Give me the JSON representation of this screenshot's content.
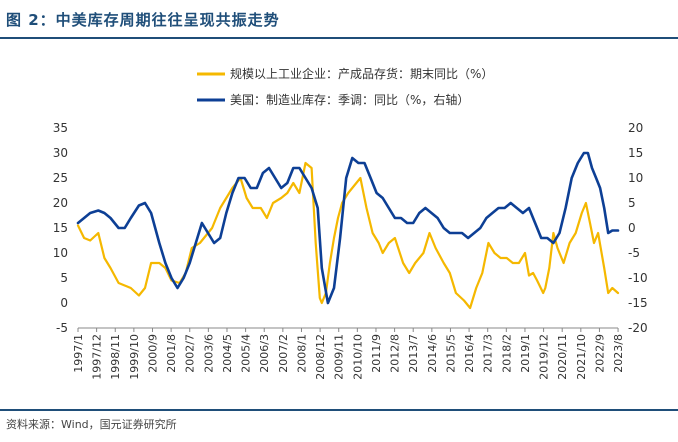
{
  "figure": {
    "title": "图 2：中美库存周期往往呈现共振走势",
    "source": "资料来源：Wind，国元证券研究所"
  },
  "colors": {
    "china": "#f5b800",
    "us": "#0d3f95",
    "accent": "#1f4e79"
  },
  "chart_data": {
    "type": "line",
    "legend": {
      "position": "top-center"
    },
    "left_axis": {
      "ylim": [
        -5,
        35
      ],
      "ticks": [
        -5,
        0,
        5,
        10,
        15,
        20,
        25,
        30,
        35
      ]
    },
    "right_axis": {
      "ylim": [
        -20,
        20
      ],
      "ticks": [
        -20,
        -15,
        -10,
        -5,
        0,
        5,
        10,
        15,
        20
      ]
    },
    "x_range": [
      1997.0,
      2023.58
    ],
    "x_tick_labels": [
      "1997/1",
      "1997/12",
      "1998/11",
      "1999/10",
      "2000/9",
      "2001/8",
      "2002/7",
      "2003/6",
      "2004/5",
      "2005/4",
      "2006/3",
      "2007/2",
      "2008/1",
      "2008/12",
      "2009/11",
      "2010/10",
      "2011/9",
      "2012/8",
      "2013/7",
      "2014/6",
      "2015/5",
      "2016/4",
      "2017/3",
      "2018/2",
      "2019/1",
      "2019/12",
      "2020/11",
      "2021/10",
      "2022/9",
      "2023/8"
    ],
    "series": [
      {
        "name": "规模以上工业企业：产成品存货：期末同比（%）",
        "axis": "left",
        "color": "#f5b800",
        "x": [
          1997.0,
          1997.3,
          1997.6,
          1998.0,
          1998.3,
          1998.6,
          1999.0,
          1999.3,
          1999.6,
          2000.0,
          2000.3,
          2000.6,
          2001.0,
          2001.3,
          2001.6,
          2002.0,
          2002.3,
          2002.6,
          2003.0,
          2003.3,
          2003.6,
          2004.0,
          2004.3,
          2004.6,
          2005.0,
          2005.3,
          2005.6,
          2006.0,
          2006.3,
          2006.6,
          2007.0,
          2007.3,
          2007.6,
          2007.9,
          2008.2,
          2008.5,
          2008.7,
          2008.9,
          2009.0,
          2009.2,
          2009.4,
          2009.6,
          2009.8,
          2010.0,
          2010.3,
          2010.6,
          2010.9,
          2011.2,
          2011.5,
          2011.8,
          2012.0,
          2012.3,
          2012.6,
          2013.0,
          2013.3,
          2013.6,
          2014.0,
          2014.3,
          2014.6,
          2015.0,
          2015.3,
          2015.6,
          2016.0,
          2016.3,
          2016.6,
          2016.9,
          2017.2,
          2017.5,
          2017.8,
          2018.1,
          2018.4,
          2018.7,
          2019.0,
          2019.2,
          2019.4,
          2019.6,
          2019.9,
          2020.0,
          2020.2,
          2020.4,
          2020.6,
          2020.9,
          2021.2,
          2021.5,
          2021.8,
          2022.0,
          2022.2,
          2022.4,
          2022.6,
          2022.9,
          2023.1,
          2023.3,
          2023.58
        ],
        "values": [
          15.5,
          13,
          12.5,
          14,
          9,
          7,
          4,
          3.5,
          3,
          1.5,
          3,
          8,
          8,
          7,
          4.5,
          4,
          6,
          11,
          12,
          13.5,
          15,
          19,
          21,
          23,
          25,
          21,
          19,
          19,
          17,
          20,
          21,
          22,
          24,
          22,
          28,
          27,
          12,
          1,
          0,
          2,
          8,
          13,
          17,
          20,
          22,
          23.5,
          25,
          19,
          14,
          12,
          10,
          12,
          13,
          8,
          6,
          8,
          10,
          14,
          11,
          8,
          6,
          2,
          0.5,
          -1,
          3,
          6,
          12,
          10,
          9,
          9,
          8,
          8,
          10,
          5.5,
          6,
          4.5,
          2,
          3,
          7,
          14,
          11,
          8,
          12,
          14,
          18,
          20,
          16,
          12,
          14,
          7,
          2,
          3,
          2
        ]
      },
      {
        "name": "美国：制造业库存：季调：同比（%，右轴）",
        "axis": "right",
        "color": "#0d3f95",
        "x": [
          1997.0,
          1997.3,
          1997.6,
          1998.0,
          1998.3,
          1998.6,
          1999.0,
          1999.3,
          1999.6,
          2000.0,
          2000.3,
          2000.6,
          2001.0,
          2001.3,
          2001.6,
          2001.9,
          2002.2,
          2002.5,
          2002.8,
          2003.1,
          2003.4,
          2003.7,
          2004.0,
          2004.3,
          2004.6,
          2004.9,
          2005.2,
          2005.5,
          2005.8,
          2006.1,
          2006.4,
          2006.7,
          2007.0,
          2007.3,
          2007.6,
          2007.9,
          2008.2,
          2008.5,
          2008.8,
          2009.0,
          2009.3,
          2009.6,
          2009.9,
          2010.2,
          2010.5,
          2010.8,
          2011.1,
          2011.4,
          2011.7,
          2012.0,
          2012.3,
          2012.6,
          2012.9,
          2013.2,
          2013.5,
          2013.8,
          2014.1,
          2014.4,
          2014.7,
          2015.0,
          2015.3,
          2015.6,
          2015.9,
          2016.2,
          2016.5,
          2016.8,
          2017.1,
          2017.4,
          2017.7,
          2018.0,
          2018.3,
          2018.6,
          2018.9,
          2019.2,
          2019.5,
          2019.8,
          2020.1,
          2020.4,
          2020.7,
          2021.0,
          2021.3,
          2021.6,
          2021.9,
          2022.1,
          2022.3,
          2022.5,
          2022.7,
          2022.9,
          2023.1,
          2023.3,
          2023.58
        ],
        "values": [
          1,
          2,
          3,
          3.5,
          3,
          2,
          0,
          0,
          2,
          4.5,
          5,
          3,
          -3,
          -7,
          -10,
          -12,
          -10,
          -7,
          -3,
          1,
          -1,
          -3,
          -2,
          3,
          7,
          10,
          10,
          8,
          8,
          11,
          12,
          10,
          8,
          9,
          12,
          12,
          10,
          8,
          4,
          -8,
          -15,
          -12,
          -2,
          10,
          14,
          13,
          13,
          10,
          7,
          6,
          4,
          2,
          2,
          1,
          1,
          3,
          4,
          3,
          2,
          0,
          -1,
          -1,
          -1,
          -2,
          -1,
          0,
          2,
          3,
          4,
          4,
          5,
          4,
          3,
          4,
          1,
          -2,
          -2,
          -3,
          -1,
          4,
          10,
          13,
          15,
          15,
          12,
          10,
          8,
          4,
          -1,
          -0.5,
          -0.5
        ]
      }
    ]
  }
}
